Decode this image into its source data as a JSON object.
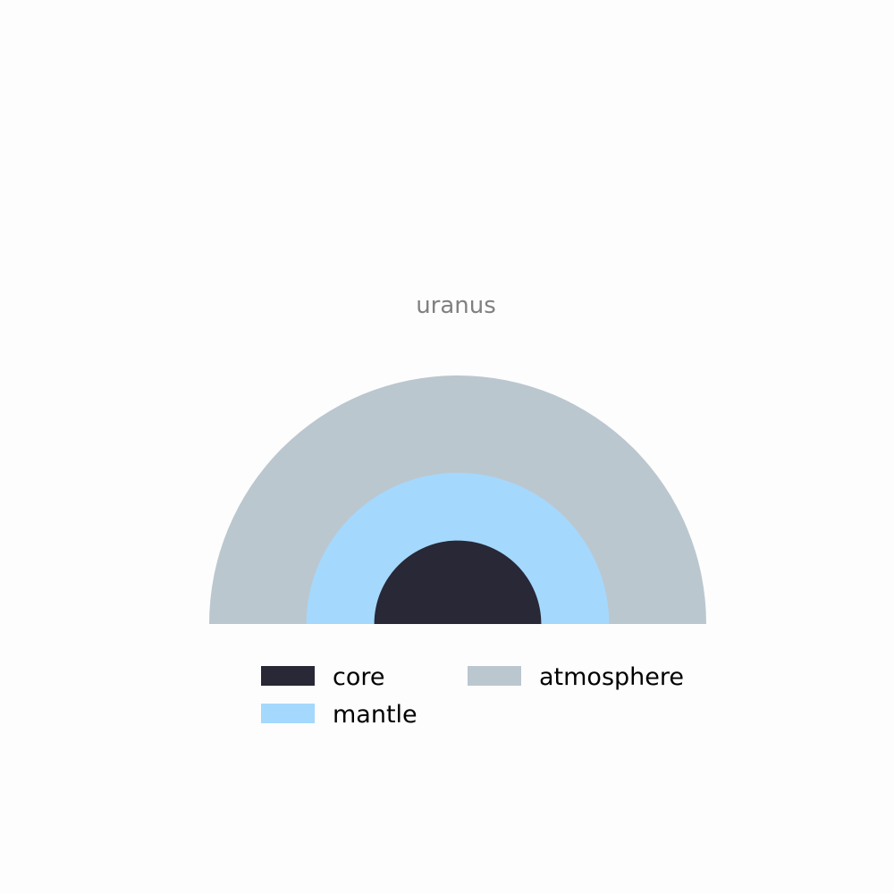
{
  "chart_data": {
    "type": "pie",
    "title": "uranus",
    "layers": [
      {
        "name": "core",
        "relative_radius": 0.336,
        "color": "#282837"
      },
      {
        "name": "mantle",
        "relative_radius": 0.609,
        "color": "#a5d8fd"
      },
      {
        "name": "atmosphere",
        "relative_radius": 1.0,
        "color": "#bbc7cf"
      }
    ],
    "legend": {
      "placement": "bottom",
      "columns": 2,
      "entries": [
        "core",
        "mantle",
        "atmosphere"
      ]
    }
  }
}
